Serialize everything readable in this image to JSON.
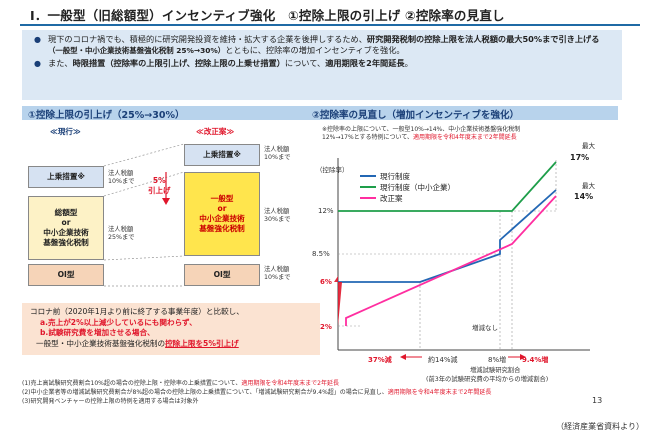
{
  "title": "Ⅰ．一般型（旧総額型）インセンティブ強化　①控除上限の引上げ ②控除率の見直し",
  "intro": {
    "bullet1_a": "現下のコロナ禍でも、積極的に研究開発投資を維持・拡大する企業を後押しするため、",
    "bullet1_b": "研究開発税制の控除上限を法人税額の最大50%まで引き上げる",
    "bullet1_c": "（一般型・中小企業技術基盤強化税制 25%→30%）",
    "bullet1_d": "とともに、控除率の増加インセンティブを強化。",
    "bullet2_a": "また、",
    "bullet2_b": "時限措置（控除率の上限引上げ、控除上限の上乗せ措置）",
    "bullet2_c": "について、",
    "bullet2_d": "適用期限を2年間延長",
    "bullet2_e": "。"
  },
  "left": {
    "section_title": "①控除上限の引上げ（25%→30%）",
    "current_label": "≪現行≫",
    "proposal_label": "≪改正案≫",
    "cur_surcharge": "上乗措置※",
    "cur_surcharge_note": "法人税額\n10%まで",
    "cur_general": "総額型\nor\n中小企業技術\n基盤強化税制",
    "cur_general_note": "法人税額\n25%まで",
    "cur_oi": "OI型",
    "raise_note": "5%\n引上げ",
    "new_surcharge": "上乗措置※",
    "new_surcharge_note": "法人税額\n10%まで",
    "new_general": "一般型\nor\n中小企業技術\n基盤強化税制",
    "new_general_note": "法人税額\n30%まで",
    "new_oi": "OI型",
    "oi_note": "法人税額\n10%まで"
  },
  "note": {
    "line1": "コロナ前（2020年1月より前に終了する事業年度）と比較し、",
    "line2": "a.売上が2%以上減少しているにも関わらず、",
    "line3": "b.試験研究費を増加させる場合、",
    "line4a": "一般型・中小企業技術基盤強化税制の",
    "line4b": "控除上限を5%引上げ"
  },
  "right": {
    "section_title": "②控除率の見直し（増加インセンティブを強化）",
    "annot_a": "※控除率の上限について、一般型10%→14%、中小企業技術基盤強化税制",
    "annot_b1": "12%→17%とする特例について、",
    "annot_b2": "適用期限を令和4年度末まで2年間延長",
    "ylabel": "（控除率）",
    "legend": [
      "現行制度",
      "現行制度（中小企業）",
      "改正案"
    ],
    "max_label": "最大",
    "max17": "17%",
    "max14": "14%",
    "no_increase": "増減なし",
    "x_37": "37%減",
    "x_14": "約14%減",
    "x_8": "8%増",
    "x_94": "9.4%増",
    "x_caption_1": "増減試験研究割合",
    "x_caption_2": "(前3年の試験研究費の平均からの増減割合)",
    "y_ticks": [
      "12%",
      "8.5%",
      "6%",
      "2%"
    ]
  },
  "chart_data": {
    "type": "line",
    "title": "②控除率の見直し（増加インセンティブを強化）",
    "xlabel": "増減試験研究割合",
    "ylabel": "（控除率）",
    "x_marks": [
      "37%減",
      "約14%減",
      "8%増",
      "9.4%増"
    ],
    "y_ticks": [
      2,
      6,
      8.5,
      12
    ],
    "series": [
      {
        "name": "現行制度",
        "points": [
          [
            "約14%減",
            6
          ],
          [
            "8%増",
            8.5
          ],
          [
            "8%増",
            10
          ],
          [
            "max",
            14
          ]
        ]
      },
      {
        "name": "現行制度（中小企業）",
        "points": [
          [
            "start",
            12
          ],
          [
            "8%増",
            12
          ],
          [
            "max",
            17
          ]
        ]
      },
      {
        "name": "改正案",
        "points": [
          [
            "37%減",
            2
          ],
          [
            "9.4%増",
            10
          ],
          [
            "max",
            14
          ]
        ]
      }
    ],
    "colors": {
      "現行制度": "#2367b4",
      "現行制度（中小企業）": "#1e9e4a",
      "改正案": "#ff2ea0"
    }
  },
  "footnotes": {
    "f1a": "(1)売上高試験研究費割合10%超の場合の控除上限・控除率の上乗措置について、",
    "f1b": "適用期限を令和4年度末まで2年延長",
    "f2a": "(2)中小企業者等の増減試験研究費割合が8%超の場合の控除上限の上乗措置について、「増減試験研究割合が9.4%超」の場合に見直し、",
    "f2b": "適用期限を令和4年度末まで2年間延長",
    "f3": "(3)研究開発ベンチャーの控除上限の特例を適用する場合は対象外"
  },
  "page_number": "13",
  "source": "（経済産業省資料より）"
}
